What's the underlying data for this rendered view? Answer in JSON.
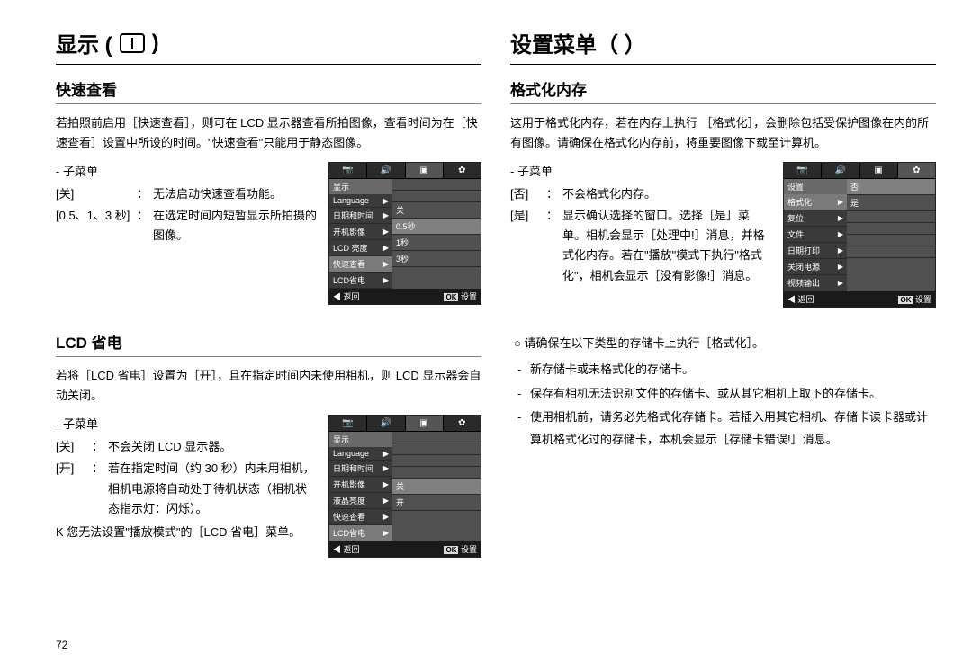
{
  "pageNumber": "72",
  "left": {
    "mainTitle": "显示 (",
    "mainTitleSuffix": ")",
    "section1": {
      "title": "快速查看",
      "intro": "若拍照前启用［快速查看］，则可在 LCD 显示器查看所拍图像，查看时间为在［快速查看］设置中所设的时间。\"快速查看\"只能用于静态图像。",
      "submenuLabel": "- 子菜单",
      "rows": [
        {
          "key": "[关]",
          "sep": "：",
          "val": "无法启动快速查看功能。"
        },
        {
          "key": "[0.5、1、3 秒]",
          "sep": "：",
          "val": "在选定时间内短暂显示所拍摄的图像。"
        }
      ],
      "panel": {
        "tabs": [
          "📷",
          "🔊",
          "▣",
          "✿"
        ],
        "activeTab": 2,
        "leftHeader": "显示",
        "leftItems": [
          "Language",
          "日期和时间",
          "开机影像",
          "LCD 亮度",
          "快速查看",
          "LCD省电"
        ],
        "highlightIdx": 4,
        "rightItems": [
          "",
          "",
          "关",
          "0.5秒",
          "1秒",
          "3秒"
        ],
        "rightHlIdx": 3,
        "bottomLeft": "◀ 返回",
        "bottomOk": "OK",
        "bottomRight": "设置"
      }
    },
    "section2": {
      "title": "LCD 省电",
      "intro": "若将［LCD 省电］设置为［开］，且在指定时间内未使用相机，则 LCD 显示器会自动关闭。",
      "submenuLabel": "- 子菜单",
      "rows": [
        {
          "key": "[关]",
          "sep": "：",
          "val": "不会关闭 LCD 显示器。"
        },
        {
          "key": "[开]",
          "sep": "：",
          "val": "若在指定时间（约 30 秒）内未用相机，相机电源将自动处于待机状态（相机状态指示灯：闪烁）。"
        }
      ],
      "note": "K 您无法设置\"播放模式\"的［LCD 省电］菜单。",
      "panel": {
        "tabs": [
          "📷",
          "🔊",
          "▣",
          "✿"
        ],
        "activeTab": 2,
        "leftHeader": "显示",
        "leftItems": [
          "Language",
          "日期和时间",
          "开机影像",
          "液晶亮度",
          "快速查看",
          "LCD省电"
        ],
        "highlightIdx": 5,
        "rightItems": [
          "",
          "",
          "",
          "",
          "关",
          "开"
        ],
        "rightHlIdx": 4,
        "bottomLeft": "◀ 返回",
        "bottomOk": "OK",
        "bottomRight": "设置"
      }
    }
  },
  "right": {
    "mainTitle": "设置菜单（  ）",
    "section1": {
      "title": "格式化内存",
      "intro": "这用于格式化内存，若在内存上执行 ［格式化］，会删除包括受保护图像在内的所有图像。请确保在格式化内存前，将重要图像下载至计算机。",
      "submenuLabel": "- 子菜单",
      "rows": [
        {
          "key": "[否]",
          "sep": "：",
          "val": "不会格式化内存。"
        },
        {
          "key": "[是]",
          "sep": "：",
          "val": "显示确认选择的窗口。选择［是］菜单。相机会显示［处理中!］消息，并格式化内存。若在\"播放\"模式下执行\"格式化\"，相机会显示［没有影像!］消息。"
        }
      ],
      "panel": {
        "tabs": [
          "📷",
          "🔊",
          "▣",
          "✿"
        ],
        "activeTab": 3,
        "leftHeader": "设置",
        "leftItems": [
          "格式化",
          "复位",
          "文件",
          "日期打印",
          "关闭电源",
          "视频输出"
        ],
        "highlightIdx": 0,
        "rightItems": [
          "否",
          "是",
          "",
          "",
          "",
          ""
        ],
        "rightHlIdx": 0,
        "bottomLeft": "◀ 返回",
        "bottomOk": "OK",
        "bottomRight": "设置"
      }
    },
    "bulletIntro": "○ 请确保在以下类型的存储卡上执行［格式化］。",
    "bullets": [
      "新存储卡或未格式化的存储卡。",
      "保存有相机无法识别文件的存储卡、或从其它相机上取下的存储卡。",
      "使用相机前，请务必先格式化存储卡。若插入用其它相机、存储卡读卡器或计算机格式化过的存储卡，本机会显示［存储卡错误!］消息。"
    ]
  }
}
